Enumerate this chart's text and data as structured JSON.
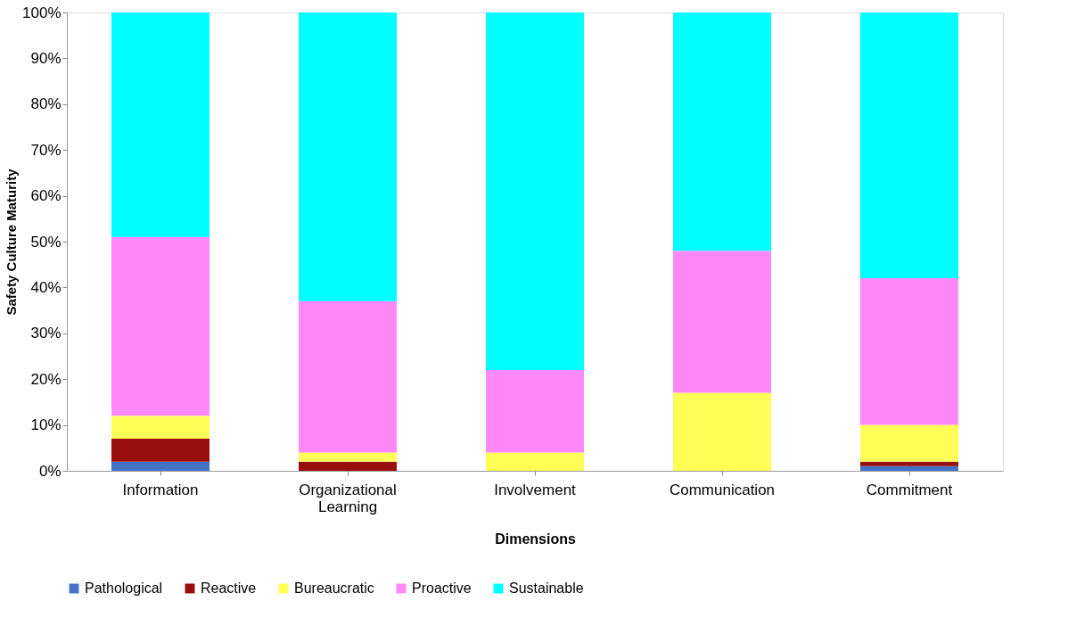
{
  "chart_data": {
    "type": "bar",
    "stacked": true,
    "xlabel": "Dimensions",
    "ylabel": "Safety Culture  Maturity",
    "categories": [
      "Information",
      "Organizational Learning",
      "Involvement",
      "Communication",
      "Commitment"
    ],
    "series": [
      {
        "name": "Pathological",
        "color": "#4472c4",
        "values": [
          2,
          0,
          0,
          0,
          1
        ]
      },
      {
        "name": "Reactive",
        "color": "#990e0e",
        "values": [
          5,
          2,
          0,
          0,
          1
        ]
      },
      {
        "name": "Bureaucratic",
        "color": "#ffff57",
        "values": [
          5,
          2,
          4,
          17,
          8
        ]
      },
      {
        "name": "Proactive",
        "color": "#ff88f8",
        "values": [
          39,
          33,
          18,
          31,
          32
        ]
      },
      {
        "name": "Sustainable",
        "color": "#00ffff",
        "values": [
          49,
          63,
          78,
          52,
          58
        ]
      }
    ],
    "ylim": [
      0,
      100
    ],
    "yticks": [
      {
        "value": 0,
        "label": "0%"
      },
      {
        "value": 10,
        "label": "10%"
      },
      {
        "value": 20,
        "label": "20%"
      },
      {
        "value": 30,
        "label": "30%"
      },
      {
        "value": 40,
        "label": "40%"
      },
      {
        "value": 50,
        "label": "50%"
      },
      {
        "value": 60,
        "label": "60%"
      },
      {
        "value": 70,
        "label": "70%"
      },
      {
        "value": 80,
        "label": "80%"
      },
      {
        "value": 90,
        "label": "90%"
      },
      {
        "value": 100,
        "label": "100%"
      }
    ],
    "grid": false,
    "legend": "bottom"
  }
}
